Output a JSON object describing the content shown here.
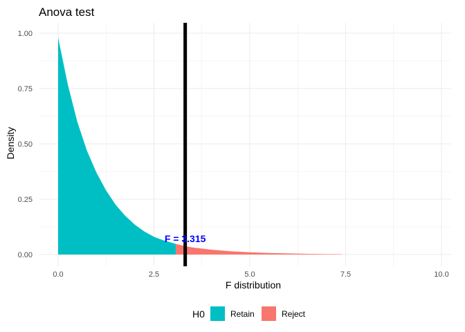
{
  "chart_data": {
    "type": "area",
    "title": "Anova test",
    "xlabel": "F distribution",
    "ylabel": "Density",
    "xlim": [
      0,
      10
    ],
    "ylim": [
      0,
      1
    ],
    "x_ticks": [
      "0.0",
      "2.5",
      "5.0",
      "7.5",
      "10.0"
    ],
    "y_ticks": [
      "0.00",
      "0.25",
      "0.50",
      "0.75",
      "1.00"
    ],
    "grid": true,
    "legend_position": "bottom",
    "legend_title": "H0",
    "critical_value": 3.315,
    "annotation": "F = 3.315",
    "series": [
      {
        "name": "Retain",
        "color": "#00BFC4",
        "x": [
          0,
          0.25,
          0.5,
          0.75,
          1.0,
          1.25,
          1.5,
          1.75,
          2.0,
          2.25,
          2.5,
          2.75,
          3.07
        ],
        "y": [
          0.98,
          0.77,
          0.6,
          0.47,
          0.37,
          0.29,
          0.225,
          0.175,
          0.135,
          0.104,
          0.08,
          0.064,
          0.048
        ]
      },
      {
        "name": "Reject",
        "color": "#F8766D",
        "x": [
          3.07,
          3.315,
          3.5,
          4.0,
          4.5,
          5.0,
          5.5,
          6.0,
          6.5,
          7.0,
          7.4
        ],
        "y": [
          0.048,
          0.038,
          0.032,
          0.022,
          0.015,
          0.01,
          0.007,
          0.005,
          0.003,
          0.002,
          0.0015
        ]
      }
    ],
    "colors": {
      "vline": "#000000",
      "annotation": "#0000FF",
      "grid": "#EBEBEB"
    }
  }
}
